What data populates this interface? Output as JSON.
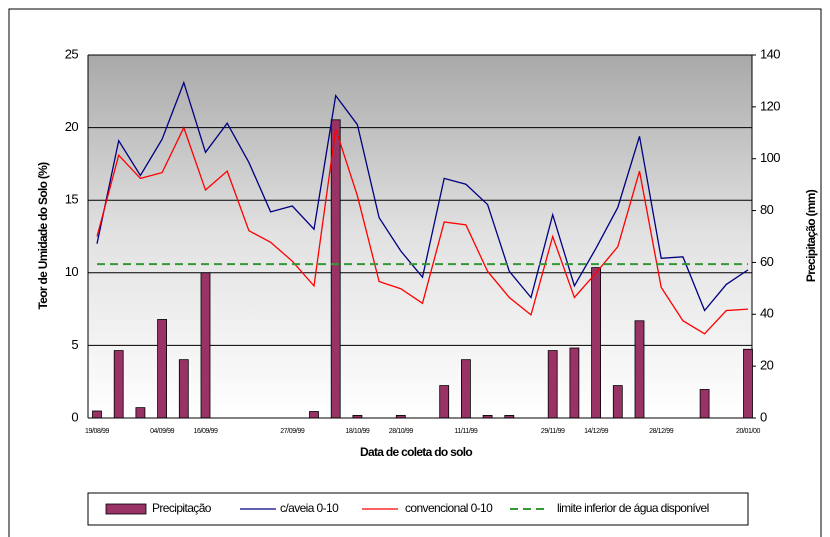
{
  "chart_data": {
    "type": "combo",
    "x_label": "Data de coleta do solo",
    "y_label": "Teor de Umidade do Solo (%)",
    "y2_label": "Precipitação (mm)",
    "categories": [
      "19/08/99",
      null,
      null,
      "04/09/99",
      null,
      "16/09/99",
      null,
      null,
      null,
      "27/09/99",
      null,
      null,
      "18/10/99",
      null,
      "28/10/99",
      null,
      null,
      "11/11/99",
      null,
      null,
      null,
      "29/11/99",
      null,
      "14/12/99",
      null,
      null,
      "28/12/99",
      null,
      null,
      null,
      "20/01/00"
    ],
    "ylim": [
      0,
      25
    ],
    "yticks": [
      0,
      5,
      10,
      15,
      20,
      25
    ],
    "y2lim": [
      0,
      140
    ],
    "y2ticks": [
      0,
      20,
      40,
      60,
      80,
      100,
      120,
      140
    ],
    "grid": true,
    "series": [
      {
        "name": "Precipitação",
        "type": "bar",
        "axis": "y2",
        "color": "#993366",
        "values": [
          2.7,
          26,
          4,
          38,
          22.5,
          56,
          0,
          0,
          0,
          0,
          2.5,
          115,
          1,
          0,
          1,
          0,
          12.5,
          22.5,
          1,
          1,
          0,
          26,
          27,
          58,
          12.5,
          37.5,
          0,
          0,
          11,
          0,
          26.5
        ]
      },
      {
        "name": "c/aveia 0-10",
        "type": "line",
        "color": "#000080",
        "values": [
          12,
          19.1,
          16.7,
          19.2,
          23.1,
          18.3,
          20.3,
          17.6,
          14.2,
          14.6,
          13,
          22.2,
          20.2,
          13.8,
          11.5,
          9.7,
          16.5,
          16.1,
          14.7,
          10.1,
          8.3,
          14,
          9.1,
          11.7,
          14.5,
          19.4,
          11,
          11.1,
          7.4,
          9.2,
          10.2
        ]
      },
      {
        "name": "convencional 0-10",
        "type": "line",
        "color": "#ff0000",
        "values": [
          12.5,
          18.1,
          16.5,
          16.9,
          20,
          15.7,
          17,
          12.9,
          12.1,
          10.8,
          9.1,
          19.9,
          15.3,
          9.4,
          8.9,
          7.9,
          13.5,
          13.3,
          10.1,
          8.3,
          7.1,
          12.5,
          8.3,
          10,
          11.8,
          17,
          9,
          6.7,
          5.8,
          7.4,
          7.5
        ]
      }
    ],
    "threshold": {
      "name": "limite inferior de água disponível",
      "value": 10.6,
      "color": "#339933"
    }
  }
}
